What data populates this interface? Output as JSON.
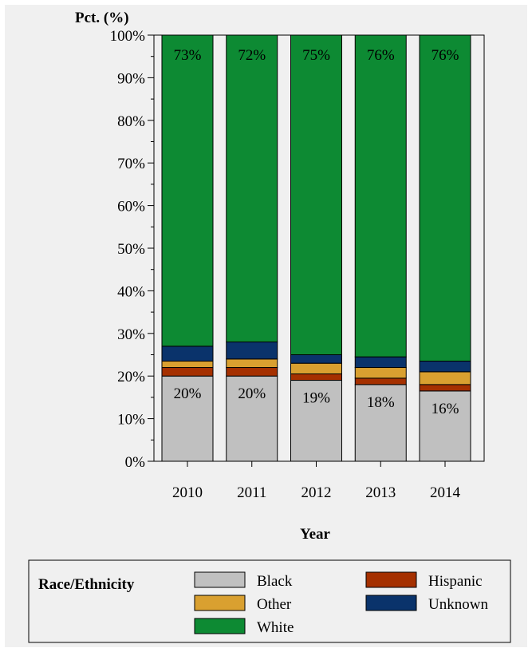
{
  "chart_data": {
    "type": "bar",
    "stacked": true,
    "categories": [
      "2010",
      "2011",
      "2012",
      "2013",
      "2014"
    ],
    "series": [
      {
        "name": "Black",
        "color": "#c0c0c0",
        "values": [
          20,
          20,
          19,
          18,
          16.5
        ]
      },
      {
        "name": "Hispanic",
        "color": "#a53000",
        "values": [
          2,
          2,
          1.5,
          1.5,
          1.5
        ]
      },
      {
        "name": "Other",
        "color": "#d9a030",
        "values": [
          1.5,
          2,
          2.5,
          2.5,
          3
        ]
      },
      {
        "name": "Unknown",
        "color": "#0a336b",
        "values": [
          3.5,
          4,
          2,
          2.5,
          2.5
        ]
      },
      {
        "name": "White",
        "color": "#0d8a33",
        "values": [
          73,
          72,
          75,
          75.5,
          76.5
        ]
      }
    ],
    "data_labels": {
      "White": [
        "73%",
        "72%",
        "75%",
        "76%",
        "76%"
      ],
      "Black": [
        "20%",
        "20%",
        "19%",
        "18%",
        "16%"
      ]
    },
    "ylabel": "Pct. (%)",
    "xlabel": "Year",
    "ylim": [
      0,
      100
    ],
    "yticks": [
      "0%",
      "10%",
      "20%",
      "30%",
      "40%",
      "50%",
      "60%",
      "70%",
      "80%",
      "90%",
      "100%"
    ],
    "grid": false,
    "legend": {
      "title": "Race/Ethnicity",
      "placement": "bottom",
      "order": [
        "Black",
        "Hispanic",
        "Other",
        "Unknown",
        "White"
      ]
    }
  }
}
